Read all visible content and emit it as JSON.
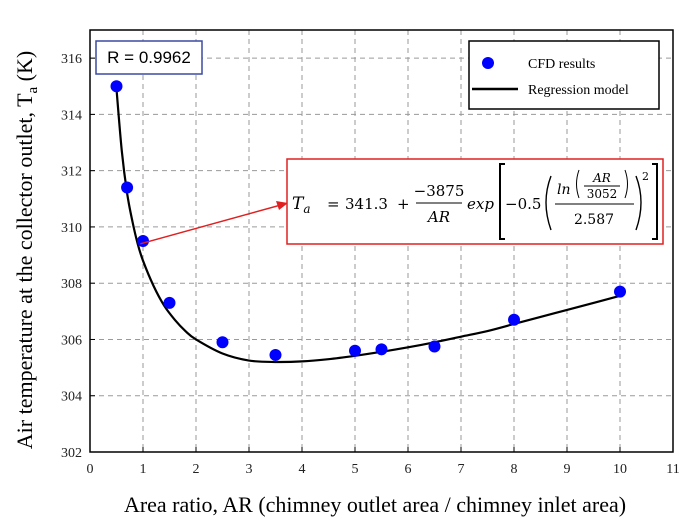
{
  "chart_data": {
    "type": "scatter",
    "xlabel": "Area ratio, AR (chimney outlet area / chimney inlet area)",
    "ylabel": "Air temperature at the collector outlet, T",
    "ylabel_sub": "a",
    "ylabel_unit": " (K)",
    "xlim": [
      0,
      11
    ],
    "ylim": [
      302,
      317
    ],
    "x_ticks": [
      0,
      1,
      2,
      3,
      4,
      5,
      6,
      7,
      8,
      9,
      10,
      11
    ],
    "y_ticks": [
      302,
      304,
      306,
      308,
      310,
      312,
      314,
      316
    ],
    "grid": "dashed",
    "legend_position": "top-right",
    "series": [
      {
        "name": "CFD results",
        "kind": "points",
        "color": "#0000ff",
        "x": [
          0.5,
          0.7,
          1.0,
          1.5,
          2.5,
          3.5,
          5.0,
          5.5,
          6.5,
          8.0,
          10.0
        ],
        "y": [
          315.0,
          311.4,
          309.5,
          307.3,
          305.9,
          305.45,
          305.6,
          305.65,
          305.75,
          306.7,
          307.7
        ]
      },
      {
        "name": "Regression model",
        "kind": "line",
        "color": "#000000",
        "x": [
          0.5,
          0.6,
          0.7,
          0.8,
          0.9,
          1.0,
          1.2,
          1.4,
          1.6,
          1.8,
          2.0,
          2.5,
          3.0,
          3.5,
          4.0,
          4.5,
          5.0,
          5.5,
          6.0,
          6.5,
          7.0,
          7.5,
          8.0,
          8.5,
          9.0,
          9.5,
          10.0
        ],
        "y": [
          314.9,
          312.7,
          311.2,
          310.2,
          309.4,
          308.8,
          307.9,
          307.2,
          306.7,
          306.3,
          306.0,
          305.5,
          305.25,
          305.2,
          305.22,
          305.3,
          305.42,
          305.56,
          305.72,
          305.9,
          306.1,
          306.3,
          306.55,
          306.8,
          307.05,
          307.3,
          307.55
        ]
      }
    ],
    "annotations": {
      "r_value": "R = 0.9962",
      "equation": {
        "lhs_var": "T",
        "lhs_sub": "a",
        "eq_sign": "=",
        "const": "341.3",
        "plus": "+",
        "numerator": "−3875",
        "denominator": "AR",
        "exp_word": "exp",
        "coef": "−0.5",
        "ln_word": "ln",
        "ar_num": "AR",
        "ar_den": "3052",
        "den": "2.587",
        "power": "2"
      },
      "arrow_target": {
        "x": 0.95,
        "y": 309.4
      }
    }
  }
}
